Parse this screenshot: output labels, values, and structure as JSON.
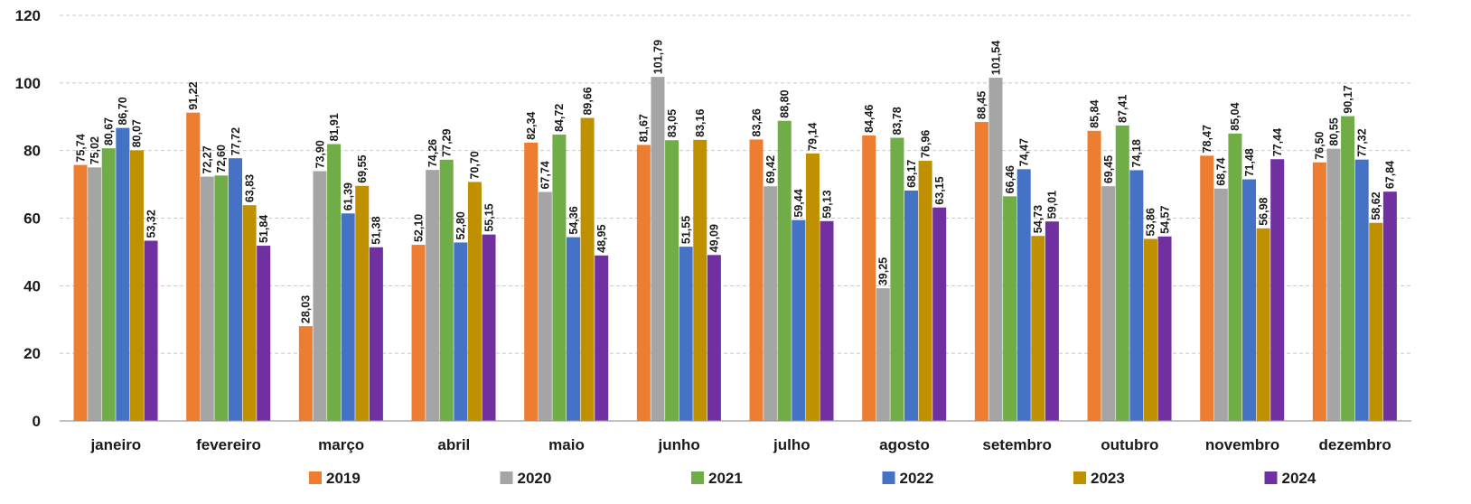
{
  "chart_data": {
    "type": "bar",
    "title": "",
    "xlabel": "",
    "ylabel": "",
    "ylim": [
      0,
      120
    ],
    "yticks": [
      "0",
      "20",
      "40",
      "60",
      "80",
      "100",
      "120"
    ],
    "grid": true,
    "legend_position": "bottom",
    "categories": [
      "janeiro",
      "fevereiro",
      "março",
      "abril",
      "maio",
      "junho",
      "julho",
      "agosto",
      "setembro",
      "outubro",
      "novembro",
      "dezembro"
    ],
    "series": [
      {
        "name": "2019",
        "color": "#ED7D31",
        "values": [
          75.74,
          91.22,
          28.03,
          52.1,
          82.34,
          81.67,
          83.26,
          84.46,
          88.45,
          85.84,
          78.47,
          76.5
        ],
        "labels": [
          "75,74",
          "91,22",
          "28,03",
          "52,10",
          "82,34",
          "81,67",
          "83,26",
          "84,46",
          "88,45",
          "85,84",
          "78,47",
          "76,50"
        ]
      },
      {
        "name": "2020",
        "color": "#A5A5A5",
        "values": [
          75.02,
          72.27,
          73.9,
          74.26,
          67.74,
          101.79,
          69.42,
          39.25,
          101.54,
          69.45,
          68.74,
          80.55
        ],
        "labels": [
          "75,02",
          "72,27",
          "73,90",
          "74,26",
          "67,74",
          "101,79",
          "69,42",
          "39,25",
          "101,54",
          "69,45",
          "68,74",
          "80,55"
        ]
      },
      {
        "name": "2021",
        "color": "#70AD47",
        "values": [
          80.67,
          72.6,
          81.91,
          77.29,
          84.72,
          83.05,
          88.8,
          83.78,
          66.46,
          87.41,
          85.04,
          90.17
        ],
        "labels": [
          "80,67",
          "72,60",
          "81,91",
          "77,29",
          "84,72",
          "83,05",
          "88,80",
          "83,78",
          "66,46",
          "87,41",
          "85,04",
          "90,17"
        ]
      },
      {
        "name": "2022",
        "color": "#4472C4",
        "values": [
          86.7,
          77.72,
          61.39,
          52.8,
          54.36,
          51.55,
          59.44,
          68.17,
          74.47,
          74.18,
          71.48,
          77.32
        ],
        "labels": [
          "86,70",
          "77,72",
          "61,39",
          "52,80",
          "54,36",
          "51,55",
          "59,44",
          "68,17",
          "74,47",
          "74,18",
          "71,48",
          "77,32"
        ]
      },
      {
        "name": "2023",
        "color": "#BF9000",
        "values": [
          80.07,
          63.83,
          69.55,
          70.7,
          89.66,
          83.16,
          79.14,
          76.96,
          54.73,
          53.86,
          56.98,
          58.62
        ],
        "labels": [
          "80,07",
          "63,83",
          "69,55",
          "70,70",
          "89,66",
          "83,16",
          "79,14",
          "76,96",
          "54,73",
          "53,86",
          "56,98",
          "58,62"
        ]
      },
      {
        "name": "2024",
        "color": "#7030A0",
        "values": [
          53.32,
          51.84,
          51.38,
          55.15,
          48.95,
          49.09,
          59.13,
          63.15,
          59.01,
          54.57,
          77.44,
          67.84
        ],
        "labels": [
          "53,32",
          "51,84",
          "51,38",
          "55,15",
          "48,95",
          "49,09",
          "59,13",
          "63,15",
          "59,01",
          "54,57",
          "77,44",
          "67,84"
        ]
      }
    ]
  }
}
